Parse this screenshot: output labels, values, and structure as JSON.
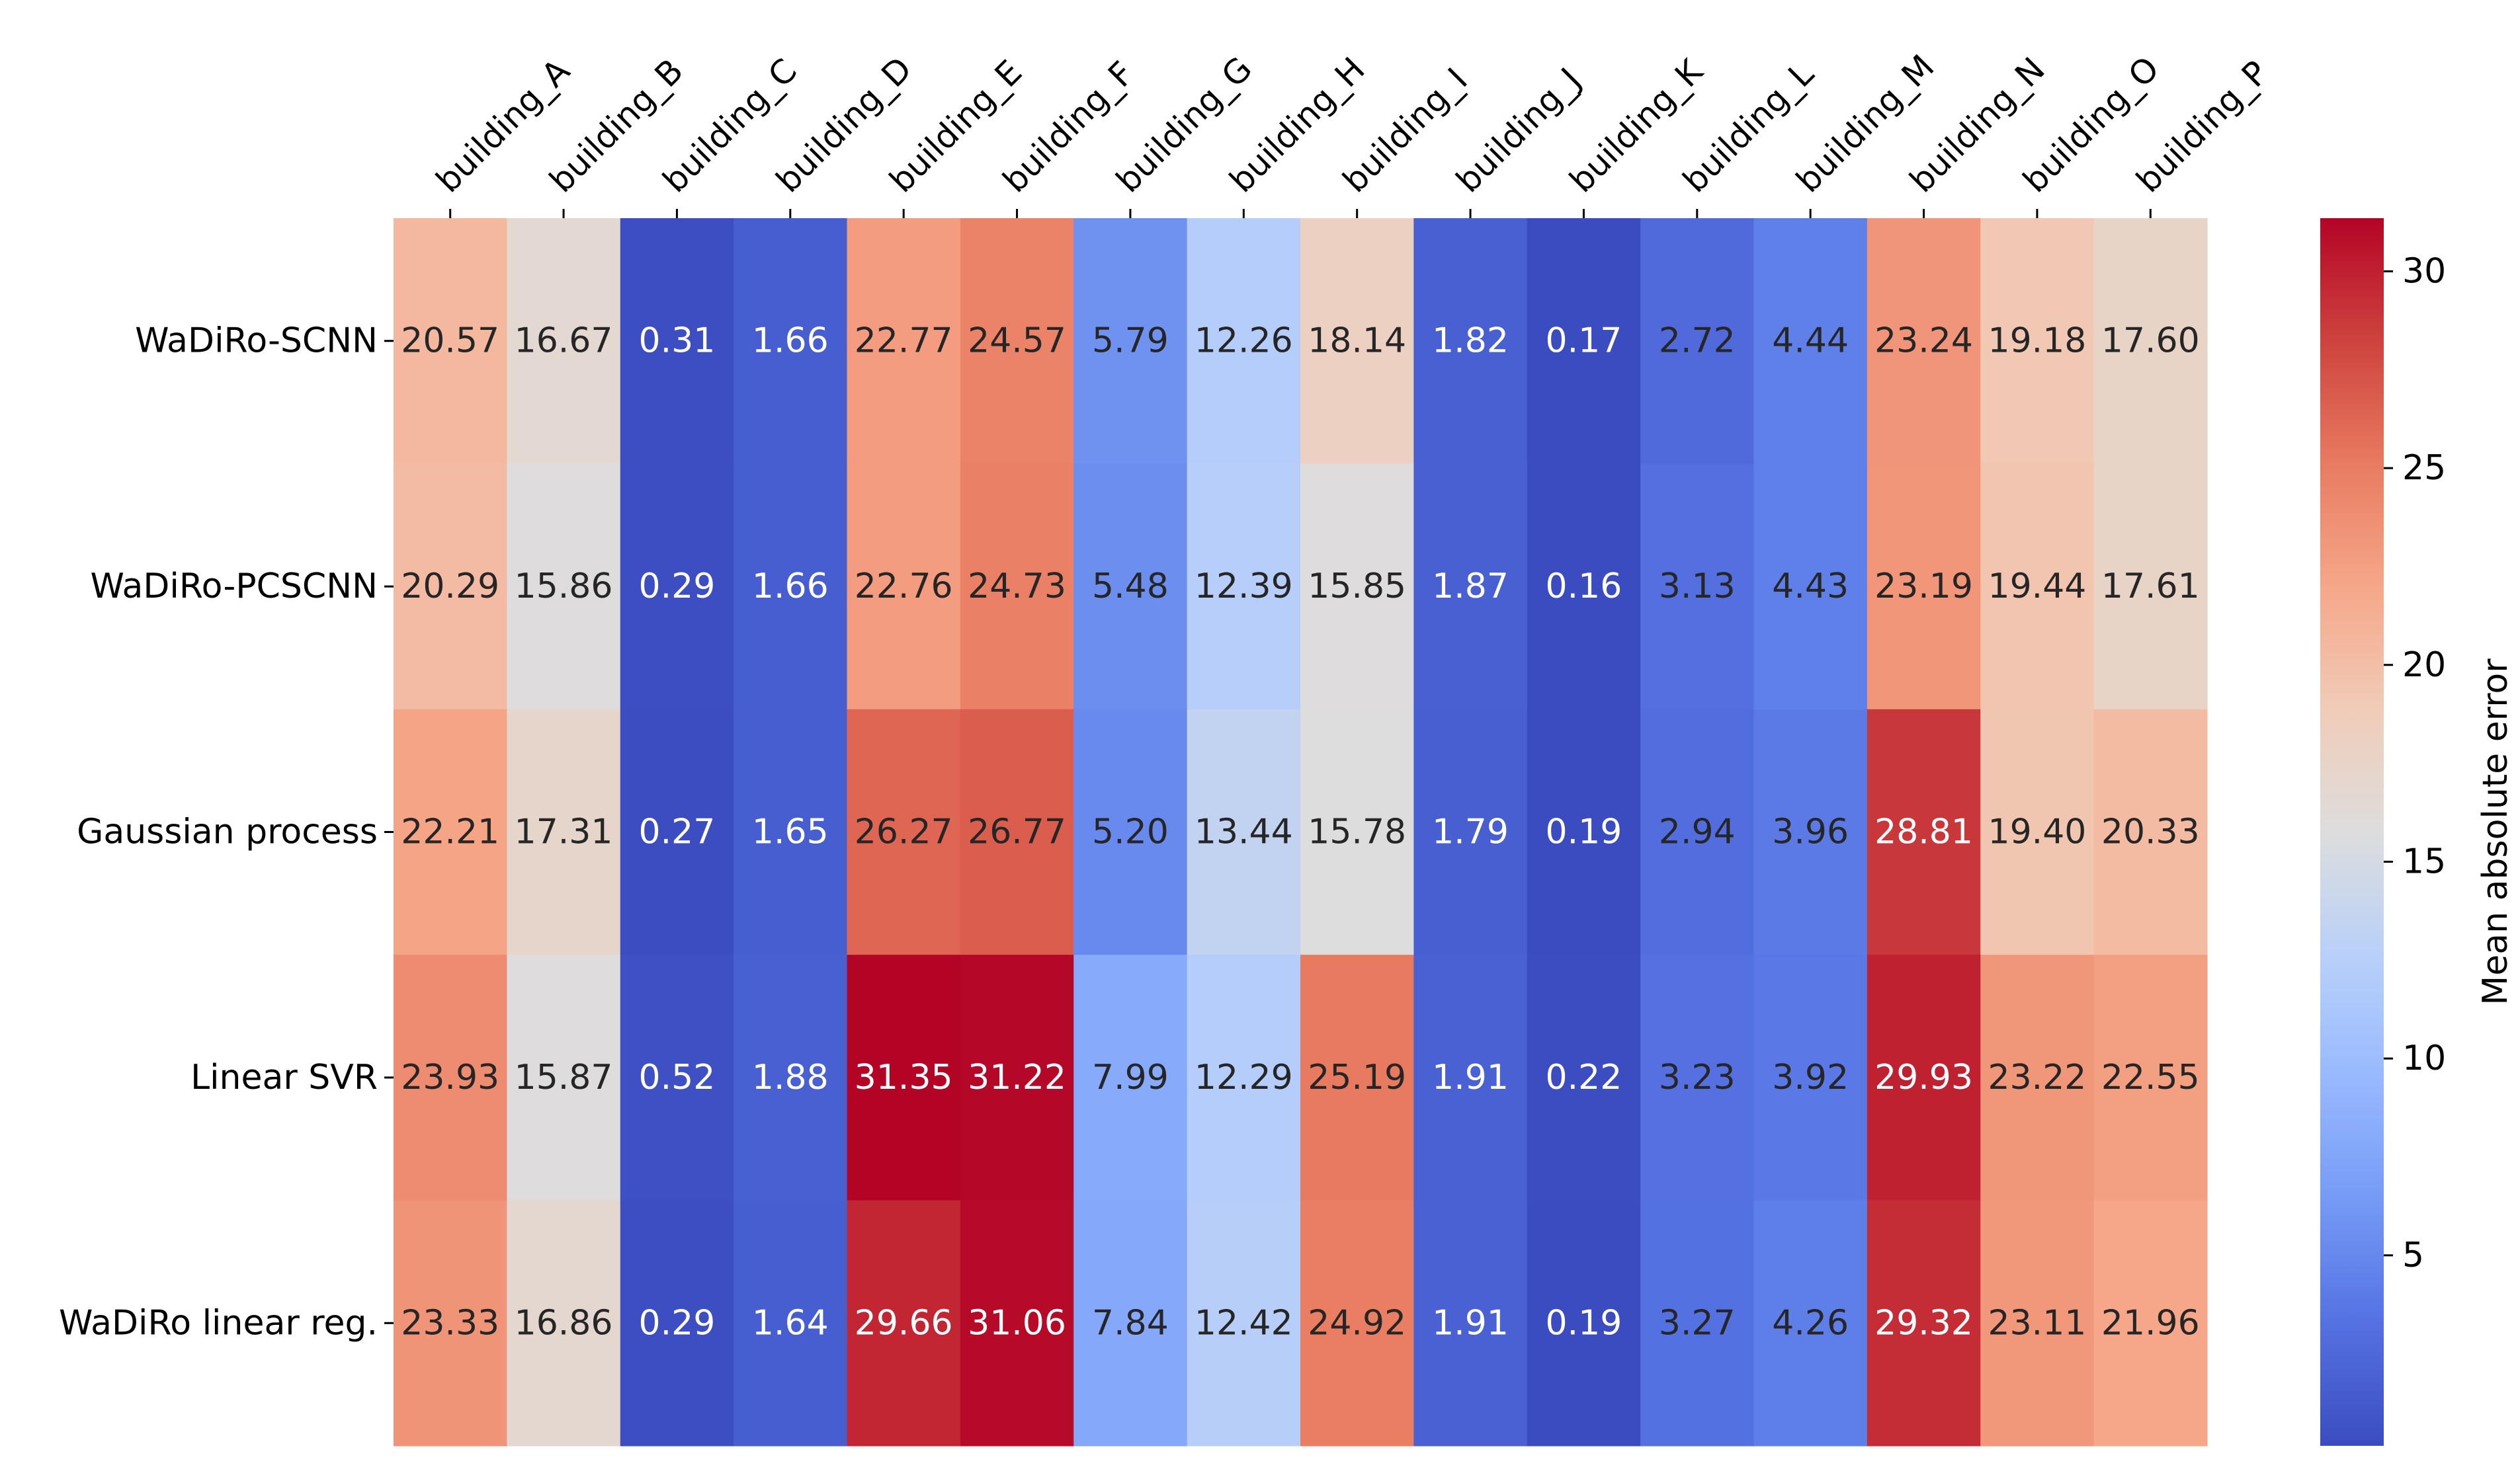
{
  "chart_data": {
    "type": "heatmap",
    "title": "",
    "xlabel": "",
    "ylabel": "",
    "columns": [
      "building_A",
      "building_B",
      "building_C",
      "building_D",
      "building_E",
      "building_F",
      "building_G",
      "building_H",
      "building_I",
      "building_J",
      "building_K",
      "building_L",
      "building_M",
      "building_N",
      "building_O",
      "building_P"
    ],
    "rows": [
      "WaDiRo-SCNN",
      "WaDiRo-PCSCNN",
      "Gaussian process",
      "Linear SVR",
      "WaDiRo linear reg."
    ],
    "values": [
      [
        20.57,
        16.67,
        0.31,
        1.66,
        22.77,
        24.57,
        5.79,
        12.26,
        18.14,
        1.82,
        0.17,
        2.72,
        4.44,
        23.24,
        19.18,
        17.6
      ],
      [
        20.29,
        15.86,
        0.29,
        1.66,
        22.76,
        24.73,
        5.48,
        12.39,
        15.85,
        1.87,
        0.16,
        3.13,
        4.43,
        23.19,
        19.44,
        17.61
      ],
      [
        22.21,
        17.31,
        0.27,
        1.65,
        26.27,
        26.77,
        5.2,
        13.44,
        15.78,
        1.79,
        0.19,
        2.94,
        3.96,
        28.81,
        19.4,
        20.33
      ],
      [
        23.93,
        15.87,
        0.52,
        1.88,
        31.35,
        31.22,
        7.99,
        12.29,
        25.19,
        1.91,
        0.22,
        3.23,
        3.92,
        29.93,
        23.22,
        22.55
      ],
      [
        23.33,
        16.86,
        0.29,
        1.64,
        29.66,
        31.06,
        7.84,
        12.42,
        24.92,
        1.91,
        0.19,
        3.27,
        4.26,
        29.32,
        23.11,
        21.96
      ]
    ],
    "value_labels": [
      [
        "20.57",
        "16.67",
        "0.31",
        "1.66",
        "22.77",
        "24.57",
        "5.79",
        "12.26",
        "18.14",
        "1.82",
        "0.17",
        "2.72",
        "4.44",
        "23.24",
        "19.18",
        "17.60"
      ],
      [
        "20.29",
        "15.86",
        "0.29",
        "1.66",
        "22.76",
        "24.73",
        "5.48",
        "12.39",
        "15.85",
        "1.87",
        "0.16",
        "3.13",
        "4.43",
        "23.19",
        "19.44",
        "17.61"
      ],
      [
        "22.21",
        "17.31",
        "0.27",
        "1.65",
        "26.27",
        "26.77",
        "5.20",
        "13.44",
        "15.78",
        "1.79",
        "0.19",
        "2.94",
        "3.96",
        "28.81",
        "19.40",
        "20.33"
      ],
      [
        "23.93",
        "15.87",
        "0.52",
        "1.88",
        "31.35",
        "31.22",
        "7.99",
        "12.29",
        "25.19",
        "1.91",
        "0.22",
        "3.23",
        "3.92",
        "29.93",
        "23.22",
        "22.55"
      ],
      [
        "23.33",
        "16.86",
        "0.29",
        "1.64",
        "29.66",
        "31.06",
        "7.84",
        "12.42",
        "24.92",
        "1.91",
        "0.19",
        "3.27",
        "4.26",
        "29.32",
        "23.11",
        "21.96"
      ]
    ],
    "colormap": "coolwarm",
    "vmin": 0.16,
    "vmax": 31.35,
    "colorbar": {
      "label": "Mean absolute error",
      "ticks": [
        5,
        10,
        15,
        20,
        25,
        30
      ],
      "tick_labels": [
        "5",
        "10",
        "15",
        "20",
        "25",
        "30"
      ]
    },
    "x_tick_position": "top",
    "grid": false
  }
}
